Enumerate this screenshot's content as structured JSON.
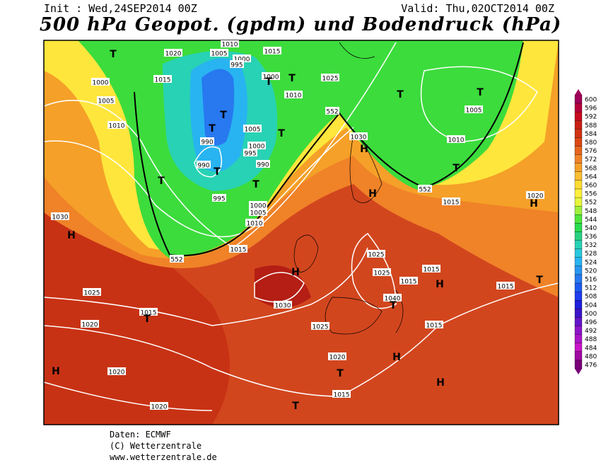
{
  "header": {
    "init": "Init : Wed,24SEP2014 00Z",
    "valid": "Valid: Thu,02OCT2014 00Z",
    "title": "500 hPa Geopot. (gpdm) und Bodendruck (hPa)"
  },
  "map": {
    "labels": [
      "1020",
      "1005",
      "1000",
      "995",
      "1010",
      "1015",
      "1015",
      "1000",
      "1005",
      "1010",
      "1020",
      "1000",
      "1010",
      "1025",
      "1005",
      "1000",
      "995",
      "990",
      "990",
      "990",
      "995",
      "1000",
      "1005",
      "1010",
      "1015",
      "1030",
      "1025",
      "1015",
      "1020",
      "1020",
      "1020",
      "1030",
      "1025",
      "1020",
      "1015",
      "1030",
      "1025",
      "1025",
      "1015",
      "1015",
      "1040",
      "1015",
      "1015",
      "1015",
      "1020",
      "1005",
      "1010",
      "15",
      "25",
      "552",
      "552",
      "552"
    ],
    "markers": [
      "T",
      "T",
      "T",
      "T",
      "T",
      "T",
      "T",
      "T",
      "T",
      "T",
      "T",
      "T",
      "H",
      "H",
      "H",
      "H",
      "H",
      "T",
      "H",
      "T",
      "T",
      "H",
      "H",
      "H",
      "T",
      "T"
    ]
  },
  "colorbar": {
    "values": [
      600,
      596,
      592,
      588,
      584,
      580,
      576,
      572,
      568,
      564,
      560,
      556,
      552,
      548,
      544,
      540,
      536,
      532,
      528,
      524,
      520,
      516,
      512,
      508,
      504,
      500,
      496,
      492,
      488,
      484,
      480,
      476
    ],
    "colors": [
      "#a0005a",
      "#b4003c",
      "#c80a1e",
      "#c81e14",
      "#d23214",
      "#dc4614",
      "#e6641e",
      "#f08228",
      "#f5a028",
      "#fabe32",
      "#ffdc32",
      "#fff03c",
      "#e6f53c",
      "#a0f03c",
      "#50e63c",
      "#28dc50",
      "#28d282",
      "#28d2b4",
      "#28c8dc",
      "#28b4f0",
      "#2896f0",
      "#2878f0",
      "#1e5af0",
      "#1e3cf0",
      "#1e1edc",
      "#3c14c8",
      "#6414c8",
      "#8c14c8",
      "#aa14c8",
      "#c814c8",
      "#a00aa0",
      "#780078"
    ]
  },
  "footer": {
    "source": "Daten: ECMWF",
    "copyright": "(C) Wetterzentrale",
    "website": "www.wetterzentrale.de"
  }
}
